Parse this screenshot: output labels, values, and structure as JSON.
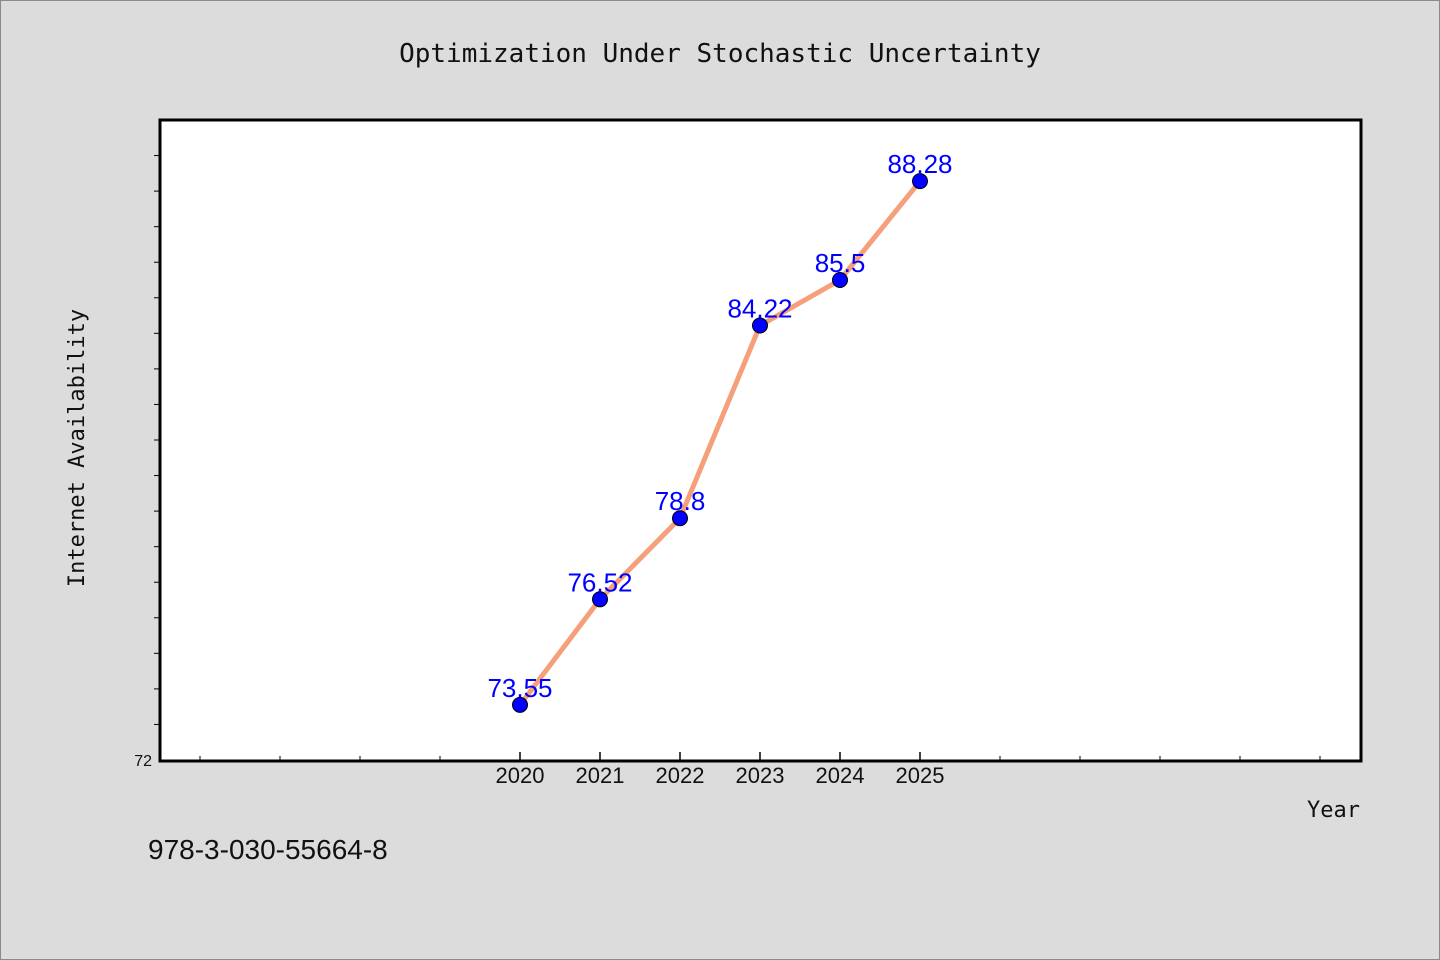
{
  "chart_data": {
    "type": "line",
    "title": "Optimization Under Stochastic Uncertainty",
    "xlabel": "Year",
    "ylabel": "Internet Availability",
    "x": [
      2020,
      2021,
      2022,
      2023,
      2024,
      2025
    ],
    "xtick_labels": [
      "2020",
      "2021",
      "2022",
      "2023",
      "2024",
      "2025"
    ],
    "xlim": [
      2015.5,
      2030.5
    ],
    "series": [
      {
        "values": [
          73.55,
          76.52,
          78.8,
          84.22,
          85.5,
          88.28
        ],
        "labels": [
          "73.55",
          "76.52",
          "78.8",
          "84.22",
          "85.5",
          "88.28"
        ],
        "line_color": "#f5a07a",
        "marker_color": "#0000ff"
      }
    ],
    "ylim": [
      72,
      90
    ],
    "ytick_labels": [
      "72"
    ],
    "grid": false,
    "legend": "none"
  },
  "footer": {
    "isbn": "978-3-030-55664-8"
  }
}
